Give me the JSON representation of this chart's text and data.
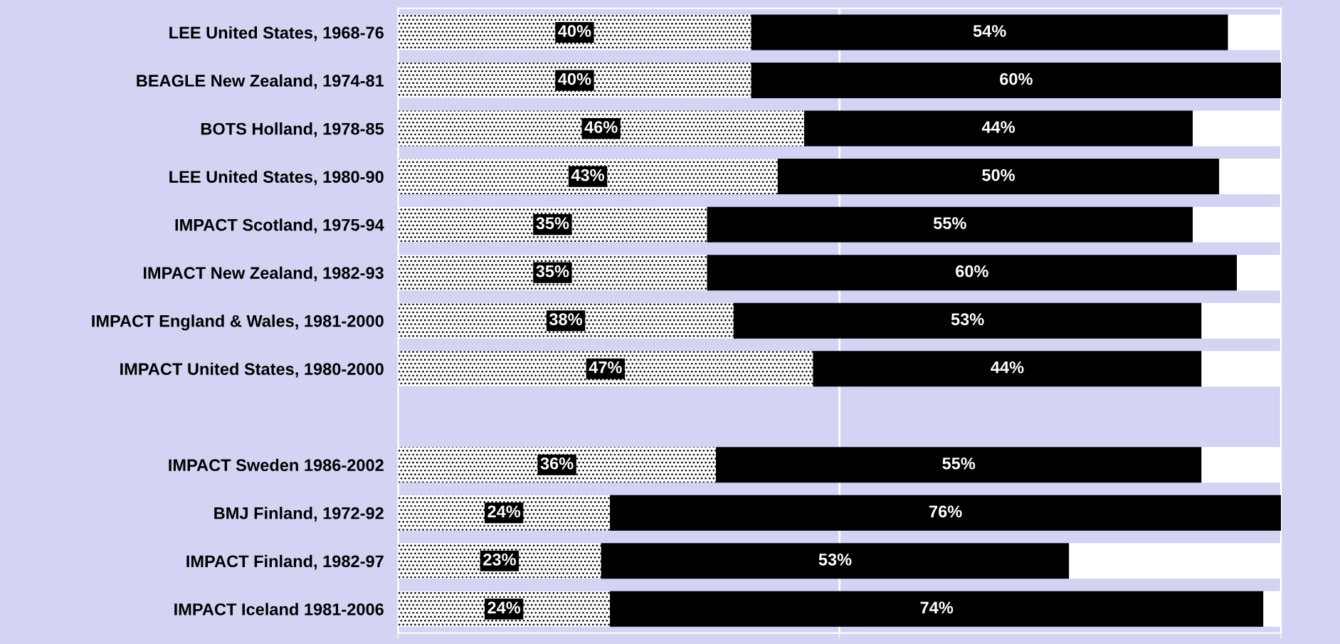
{
  "chart_data": {
    "type": "bar",
    "orientation": "horizontal",
    "stacked": true,
    "categories": [
      "LEE United States, 1968-76",
      "BEAGLE New Zealand, 1974-81",
      "BOTS Holland, 1978-85",
      "LEE United States, 1980-90",
      "IMPACT Scotland, 1975-94",
      "IMPACT New Zealand, 1982-93",
      "IMPACT England & Wales, 1981-2000",
      "IMPACT United States, 1980-2000",
      null,
      "IMPACT Sweden 1986-2002",
      "BMJ Finland, 1972-92",
      "IMPACT Finland, 1982-97",
      "IMPACT Iceland 1981-2006"
    ],
    "series": [
      {
        "color": "#ffffff",
        "values": [
          40,
          40,
          46,
          43,
          35,
          35,
          38,
          47,
          null,
          36,
          24,
          23,
          24
        ],
        "value_labels": [
          "40%",
          "40%",
          "46%",
          "43%",
          "35%",
          "35%",
          "38%",
          "47%",
          null,
          "36%",
          "24%",
          "23%",
          "24%"
        ]
      },
      {
        "color": "#000000",
        "values": [
          54,
          60,
          44,
          50,
          55,
          60,
          53,
          44,
          null,
          55,
          76,
          53,
          74
        ],
        "value_labels": [
          "54%",
          "60%",
          "44%",
          "50%",
          "55%",
          "60%",
          "53%",
          "44%",
          null,
          "55%",
          "76%",
          "53%",
          "74%"
        ]
      },
      {
        "color": "#ffffff",
        "values": [
          6,
          0,
          10,
          7,
          10,
          5,
          9,
          9,
          null,
          9,
          0,
          24,
          2
        ]
      }
    ],
    "xlim": [
      0,
      100
    ],
    "xticks": [
      {
        "value": 0,
        "label": null
      },
      {
        "value": 50,
        "label": null
      },
      {
        "value": 100,
        "label": null
      }
    ],
    "tick_labels": "y",
    "grid": "x",
    "legend": false
  }
}
